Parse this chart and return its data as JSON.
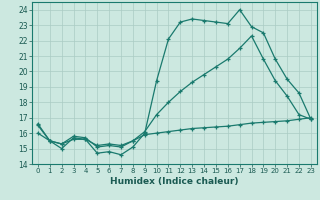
{
  "title": "",
  "xlabel": "Humidex (Indice chaleur)",
  "bg_color": "#cce8e0",
  "grid_color": "#aaccc4",
  "line_color": "#1a7a6e",
  "xlim": [
    -0.5,
    23.5
  ],
  "ylim": [
    14,
    24.5
  ],
  "yticks": [
    14,
    15,
    16,
    17,
    18,
    19,
    20,
    21,
    22,
    23,
    24
  ],
  "xticks": [
    0,
    1,
    2,
    3,
    4,
    5,
    6,
    7,
    8,
    9,
    10,
    11,
    12,
    13,
    14,
    15,
    16,
    17,
    18,
    19,
    20,
    21,
    22,
    23
  ],
  "line1_x": [
    0,
    1,
    2,
    3,
    4,
    5,
    6,
    7,
    8,
    9,
    10,
    11,
    12,
    13,
    14,
    15,
    16,
    17,
    18,
    19,
    20,
    21,
    22,
    23
  ],
  "line1_y": [
    16.6,
    15.5,
    15.0,
    15.7,
    15.6,
    14.7,
    14.8,
    14.6,
    15.1,
    16.0,
    19.4,
    22.1,
    23.2,
    23.4,
    23.3,
    23.2,
    23.1,
    24.0,
    22.9,
    22.5,
    20.8,
    19.5,
    18.6,
    16.9
  ],
  "line2_x": [
    0,
    1,
    2,
    3,
    4,
    5,
    6,
    7,
    8,
    9,
    10,
    11,
    12,
    13,
    14,
    15,
    16,
    17,
    18,
    19,
    20,
    21,
    22,
    23
  ],
  "line2_y": [
    16.5,
    15.5,
    15.3,
    15.8,
    15.7,
    15.1,
    15.2,
    15.1,
    15.5,
    16.1,
    17.2,
    18.0,
    18.7,
    19.3,
    19.8,
    20.3,
    20.8,
    21.5,
    22.3,
    20.8,
    19.4,
    18.4,
    17.2,
    16.9
  ],
  "line3_x": [
    0,
    1,
    2,
    3,
    4,
    5,
    6,
    7,
    8,
    9,
    10,
    11,
    12,
    13,
    14,
    15,
    16,
    17,
    18,
    19,
    20,
    21,
    22,
    23
  ],
  "line3_y": [
    16.0,
    15.5,
    15.3,
    15.6,
    15.6,
    15.2,
    15.3,
    15.2,
    15.5,
    15.9,
    16.0,
    16.1,
    16.2,
    16.3,
    16.35,
    16.4,
    16.45,
    16.55,
    16.65,
    16.7,
    16.75,
    16.8,
    16.9,
    17.0
  ]
}
